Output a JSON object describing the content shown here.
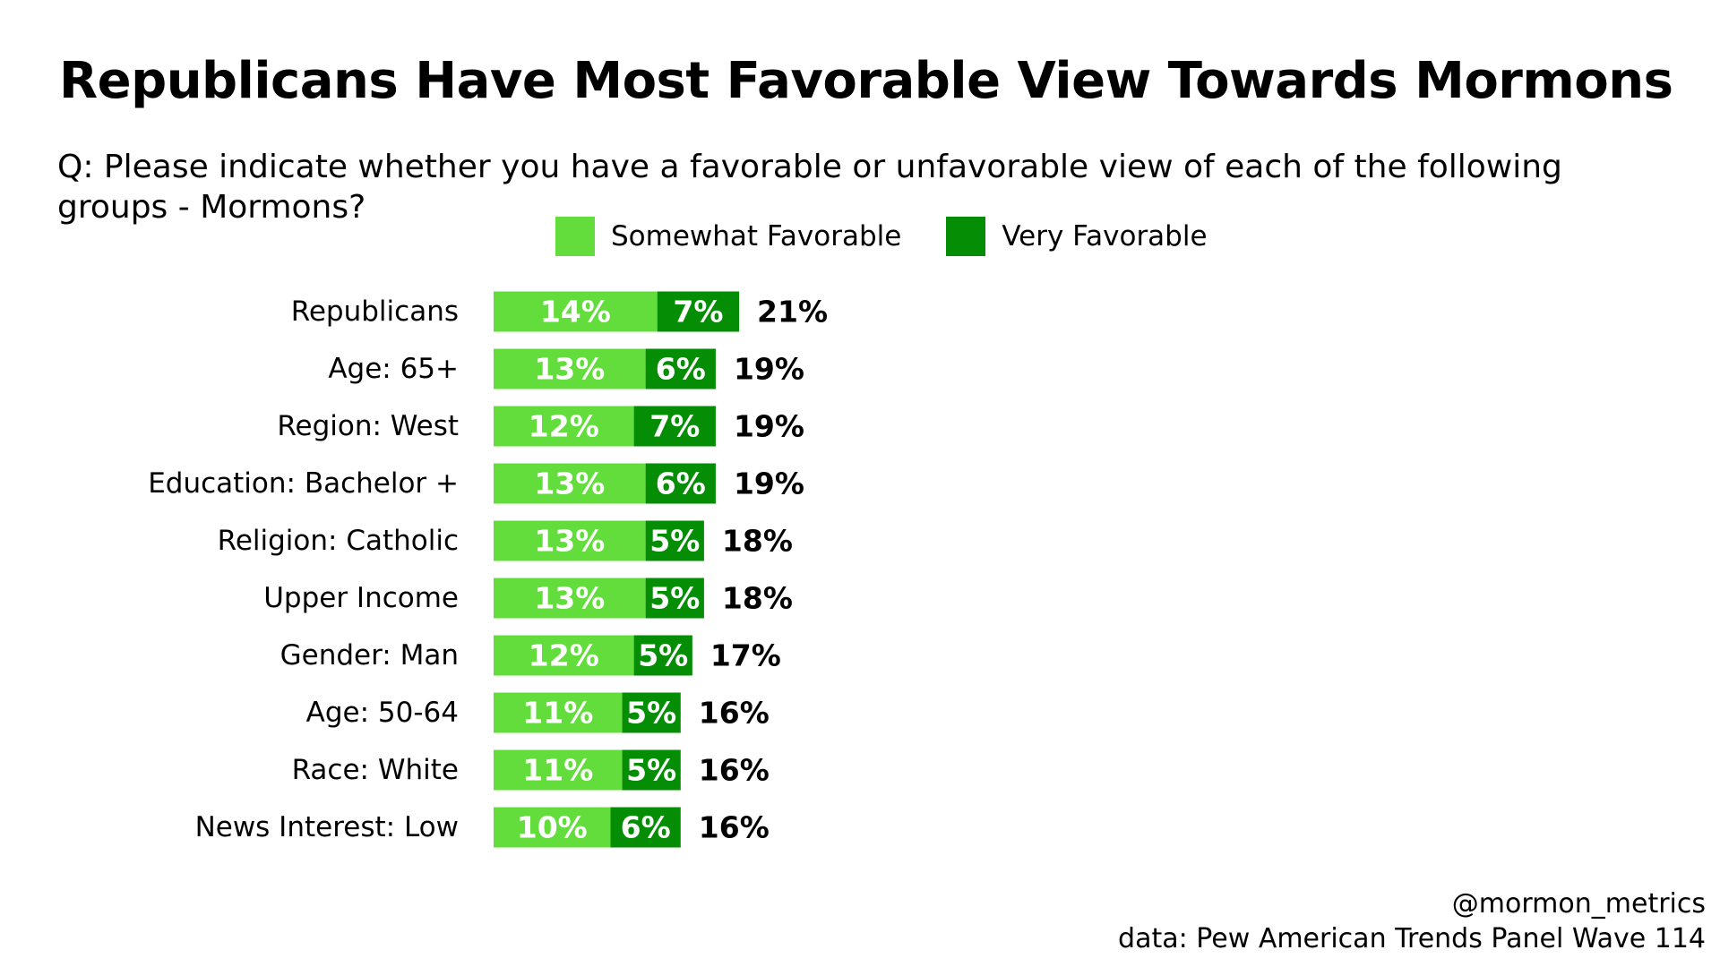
{
  "colors": {
    "somewhat": "#63dd3c",
    "very": "#058d05",
    "text": "#000000",
    "bar_label": "#ffffff"
  },
  "chart_data": {
    "type": "bar",
    "orientation": "horizontal",
    "stacked": true,
    "title": "Republicans Have Most Favorable View Towards Mormons",
    "subtitle": "Q: Please indicate whether you have a favorable or unfavorable view of each of the following groups - Mormons?",
    "legend_position": "top",
    "categories": [
      "Republicans",
      "Age: 65+",
      "Region: West",
      "Education: Bachelor +",
      "Religion: Catholic",
      "Upper Income",
      "Gender: Man",
      "Age: 50-64",
      "Race: White",
      "News Interest: Low"
    ],
    "series": [
      {
        "name": "Somewhat Favorable",
        "values": [
          14,
          13,
          12,
          13,
          13,
          13,
          12,
          11,
          11,
          10
        ],
        "labels": [
          "14%",
          "13%",
          "12%",
          "13%",
          "13%",
          "13%",
          "12%",
          "11%",
          "11%",
          "10%"
        ]
      },
      {
        "name": "Very Favorable",
        "values": [
          7,
          6,
          7,
          6,
          5,
          5,
          5,
          5,
          5,
          6
        ],
        "labels": [
          "7%",
          "6%",
          "7%",
          "6%",
          "5%",
          "5%",
          "5%",
          "5%",
          "5%",
          "6%"
        ]
      }
    ],
    "totals": [
      21,
      19,
      19,
      19,
      18,
      18,
      17,
      16,
      16,
      16
    ],
    "total_labels": [
      "21%",
      "19%",
      "19%",
      "19%",
      "18%",
      "18%",
      "17%",
      "16%",
      "16%",
      "16%"
    ],
    "xlabel": "",
    "ylabel": "",
    "xlim": [
      0,
      100
    ],
    "grid": false
  },
  "footer": {
    "handle": "@mormon_metrics",
    "source": "data: Pew American Trends Panel Wave 114"
  }
}
